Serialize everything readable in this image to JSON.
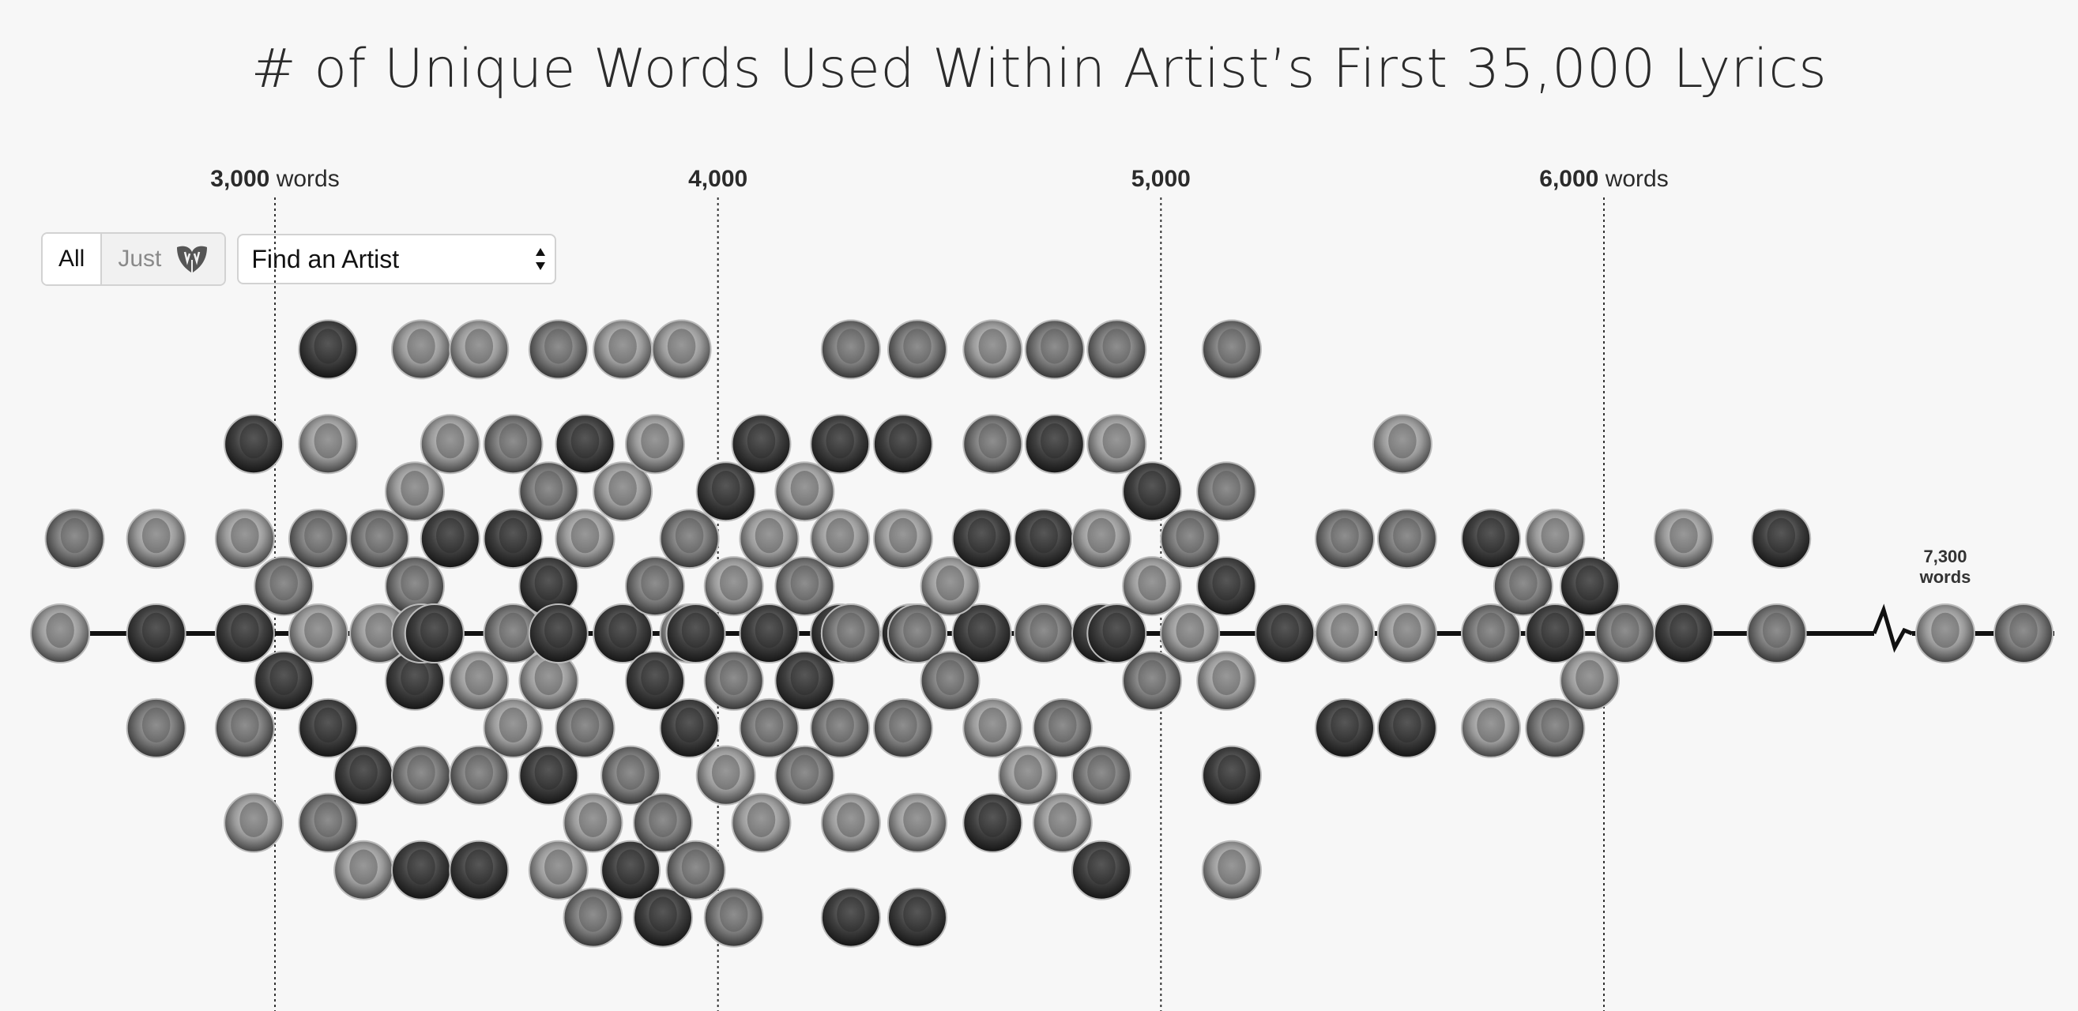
{
  "title": "# of Unique Words Used Within Artist’s First 35,000 Lyrics",
  "controls": {
    "all_label": "All",
    "just_label": "Just",
    "just_icon": "wu-tang-logo-icon",
    "find_label": "Find an Artist",
    "find_icon": "select-arrows-icon"
  },
  "colors": {
    "background": "#f7f7f7",
    "axis_line": "#111111",
    "gridline": "#333333",
    "avatar_border": "#bbbbbb"
  },
  "chart_data": {
    "type": "scatter",
    "subtype": "beeswarm",
    "title": "# of Unique Words Used Within Artist’s First 35,000 Lyrics",
    "x_axis": {
      "range": [
        2450,
        7400
      ],
      "ticks": [
        {
          "value": 3000,
          "num": "3,000",
          "unit": "words"
        },
        {
          "value": 4000,
          "num": "4,000",
          "unit": ""
        },
        {
          "value": 5000,
          "num": "5,000",
          "unit": ""
        },
        {
          "value": 6000,
          "num": "6,000",
          "unit": "words"
        }
      ],
      "axis_break_after": 6500,
      "grid": "dotted vertical"
    },
    "annotations": [
      {
        "value": 7300,
        "line1": "7,300",
        "line2": "words"
      }
    ],
    "artist_words": [
      2515,
      2548,
      2732,
      2732,
      2732,
      2932,
      2932,
      2932,
      2952,
      2952,
      3020,
      3020,
      3080,
      3080,
      3120,
      3120,
      3120,
      3120,
      3200,
      3200,
      3200,
      3200,
      3280,
      3280,
      3280,
      3330,
      3330,
      3330,
      3330,
      3360,
      3360,
      3360,
      3360,
      3425,
      3425,
      3425,
      3425,
      3520,
      3520,
      3520,
      3520,
      3600,
      3600,
      3600,
      3600,
      3640,
      3640,
      3640,
      3700,
      3700,
      3700,
      3700,
      3700,
      3785,
      3785,
      3785,
      3785,
      3785,
      3840,
      3840,
      3840,
      3840,
      3840,
      3900,
      3900,
      3900,
      3900,
      3950,
      3950,
      4000,
      4000,
      4000,
      4000,
      4000,
      4080,
      4080,
      4080,
      4080,
      4080,
      4160,
      4160,
      4160,
      4160,
      4240,
      4240,
      4240,
      4240,
      4300,
      4300,
      4300,
      4300,
      4300,
      4400,
      4400,
      4400,
      4400,
      4450,
      4450,
      4450,
      4450,
      4450,
      4560,
      4560,
      4560,
      4560,
      4620,
      4620,
      4620,
      4620,
      4700,
      4700,
      4700,
      4760,
      4760,
      4760,
      4760,
      4830,
      4830,
      4830,
      4830,
      4900,
      4900,
      4900,
      4980,
      4980,
      4980,
      5030,
      5030,
      5130,
      5130,
      5130,
      5160,
      5160,
      5160,
      5280,
      5415,
      5415,
      5415,
      5520,
      5520,
      5520,
      5545,
      5745,
      5745,
      5745,
      5800,
      5890,
      5890,
      5890,
      5950,
      5950,
      6030,
      6180,
      6180,
      6390,
      6400,
      7300,
      7480
    ]
  }
}
